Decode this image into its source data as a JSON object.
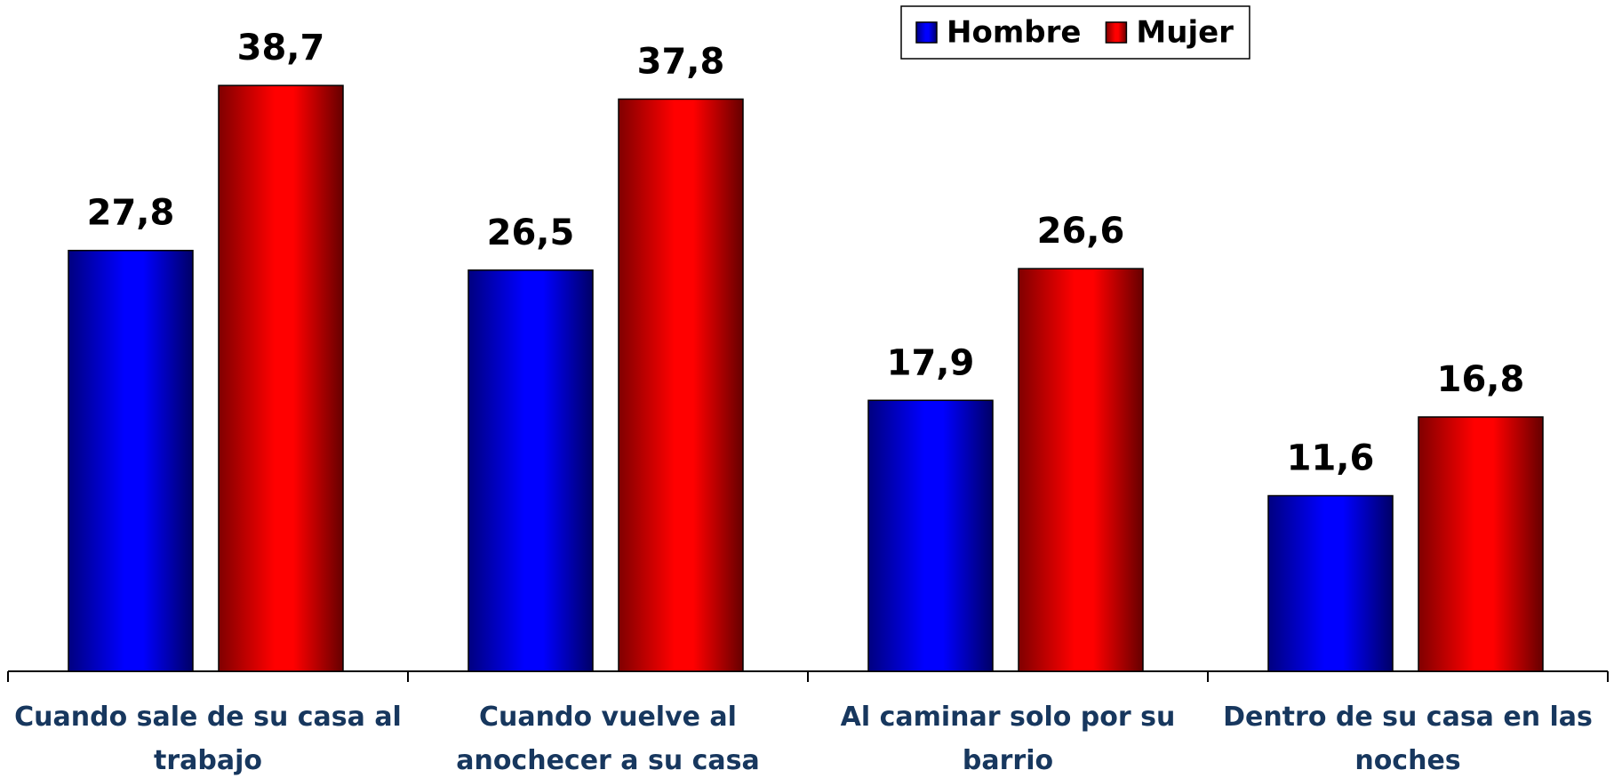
{
  "chart_data": {
    "type": "bar",
    "categories": [
      "Cuando sale de su casa al trabajo",
      "Cuando vuelve al anochecer a su casa",
      "Al caminar solo por su barrio",
      "Dentro de su casa en las noches"
    ],
    "series": [
      {
        "name": "Hombre",
        "color": "#0000ff",
        "values": [
          27.8,
          26.5,
          17.9,
          11.6
        ],
        "value_labels": [
          "27,8",
          "26,5",
          "17,9",
          "11,6"
        ]
      },
      {
        "name": "Mujer",
        "color": "#ff0000",
        "values": [
          38.7,
          37.8,
          26.6,
          16.8
        ],
        "value_labels": [
          "38,7",
          "37,8",
          "26,6",
          "16,8"
        ]
      }
    ],
    "ylim": [
      0,
      40
    ],
    "legend": "top-right"
  }
}
